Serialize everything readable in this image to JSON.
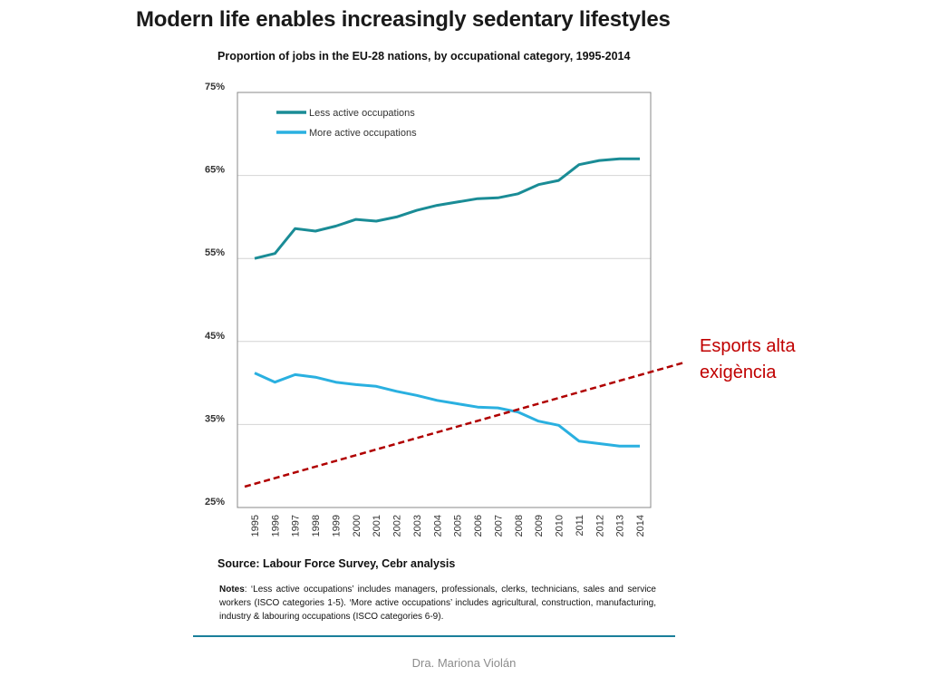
{
  "slide": {
    "title": "Modern life enables increasingly sedentary lifestyles",
    "annotation": "Esports alta exigència",
    "footer": "Dra. Mariona Violán"
  },
  "chart_data": {
    "type": "line",
    "title": "Proportion of jobs in the EU-28 nations, by occupational category, 1995-2014",
    "x": [
      "1995",
      "1996",
      "1997",
      "1998",
      "1999",
      "2000",
      "2001",
      "2002",
      "2003",
      "2004",
      "2005",
      "2006",
      "2007",
      "2008",
      "2009",
      "2010",
      "2011",
      "2012",
      "2013",
      "2014"
    ],
    "ylim": [
      25,
      75
    ],
    "yticks": [
      "25%",
      "35%",
      "45%",
      "55%",
      "65%",
      "75%"
    ],
    "grid": true,
    "legend": "top-left",
    "series": [
      {
        "name": "Less active occupations",
        "color": "#1a8c96",
        "values": [
          55.0,
          55.6,
          58.6,
          58.3,
          58.9,
          59.7,
          59.5,
          60.0,
          60.8,
          61.4,
          61.8,
          62.2,
          62.3,
          62.8,
          63.9,
          64.4,
          66.3,
          66.8,
          67.0,
          67.0
        ]
      },
      {
        "name": "More active occupations",
        "color": "#2ab0e0",
        "values": [
          41.2,
          40.1,
          41.0,
          40.7,
          40.1,
          39.8,
          39.6,
          39.0,
          38.5,
          37.9,
          37.5,
          37.1,
          37.0,
          36.5,
          35.4,
          34.9,
          33.0,
          32.7,
          32.4,
          32.4
        ]
      }
    ],
    "trend_line": {
      "color": "#b00000",
      "style": "dashed"
    },
    "source": "Source: Labour Force Survey, Cebr analysis",
    "notes_label": "Notes",
    "notes_text": ": ‘Less active occupations’ includes managers, professionals, clerks, technicians, sales and service workers (ISCO categories 1-5). ‘More active occupations’ includes agricultural, construction, manufacturing, industry & labouring occupations (ISCO categories 6-9)."
  }
}
